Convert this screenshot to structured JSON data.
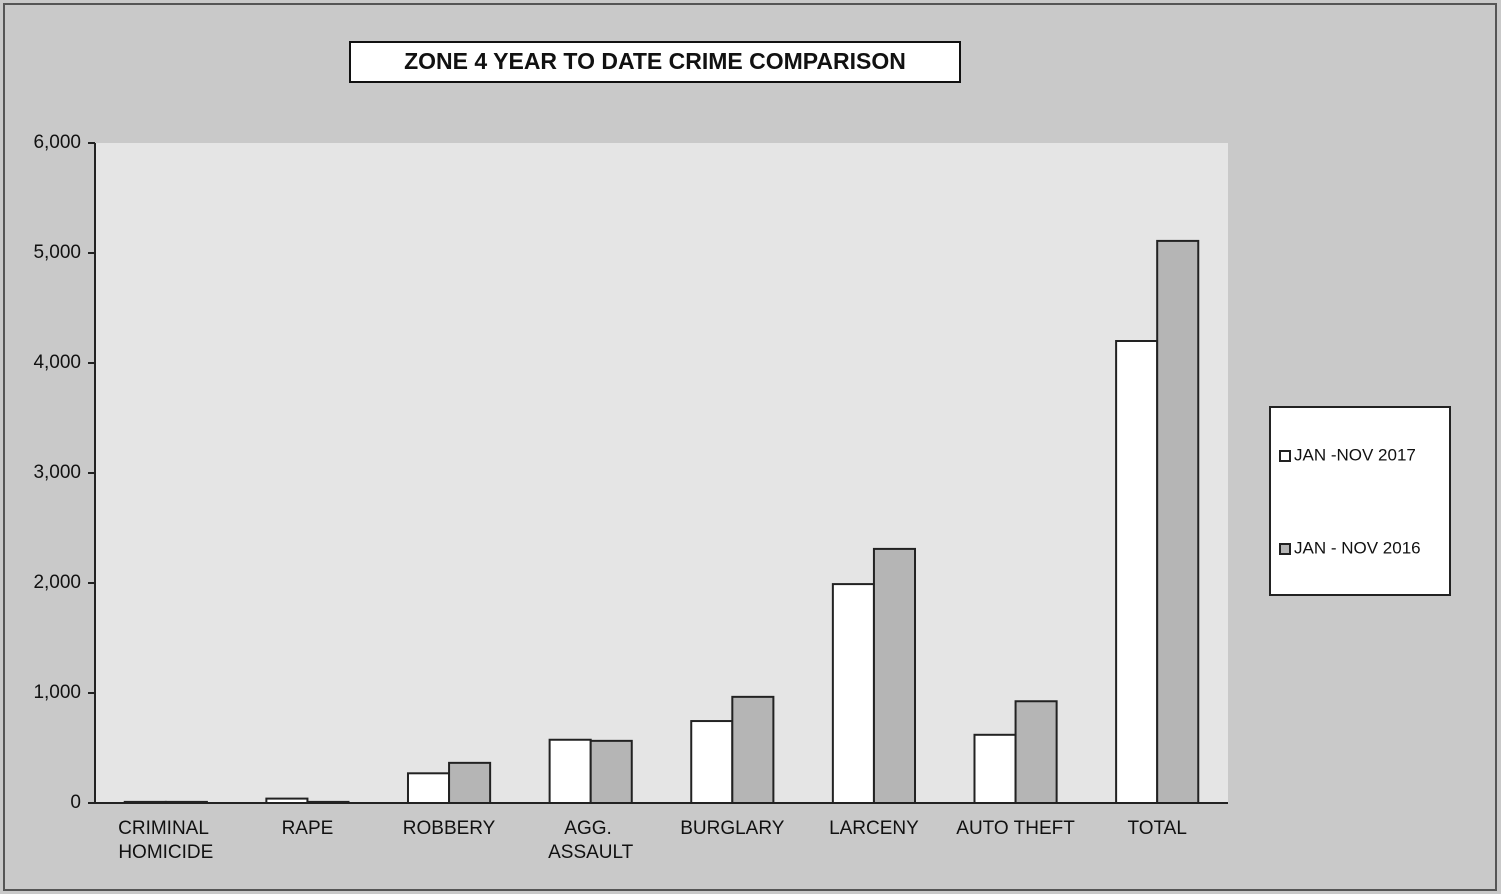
{
  "chart_data": {
    "type": "bar",
    "title": "ZONE 4  YEAR TO DATE CRIME COMPARISON",
    "categories": [
      "CRIMINAL HOMICIDE",
      "RAPE",
      "ROBBERY",
      "AGG. ASSAULT",
      "BURGLARY",
      "LARCENY",
      "AUTO THEFT",
      "TOTAL"
    ],
    "series": [
      {
        "name": "JAN -NOV 2017",
        "color": "#ffffff",
        "values": [
          10,
          40,
          270,
          575,
          745,
          1990,
          620,
          4200
        ]
      },
      {
        "name": "JAN - NOV 2016",
        "color": "#b5b5b5",
        "values": [
          10,
          10,
          365,
          565,
          965,
          2310,
          925,
          5110
        ]
      }
    ],
    "ylim": [
      0,
      6000
    ],
    "yticks": [
      0,
      {
        "value": 1000,
        "label": "1,000"
      },
      {
        "value": 2000,
        "label": "2,000"
      },
      {
        "value": 3000,
        "label": "3,000"
      },
      {
        "value": 4000,
        "label": "4,000"
      },
      {
        "value": 5000,
        "label": "5,000"
      },
      {
        "value": 6000,
        "label": "6,000"
      }
    ],
    "grid": false,
    "legend": "right"
  }
}
